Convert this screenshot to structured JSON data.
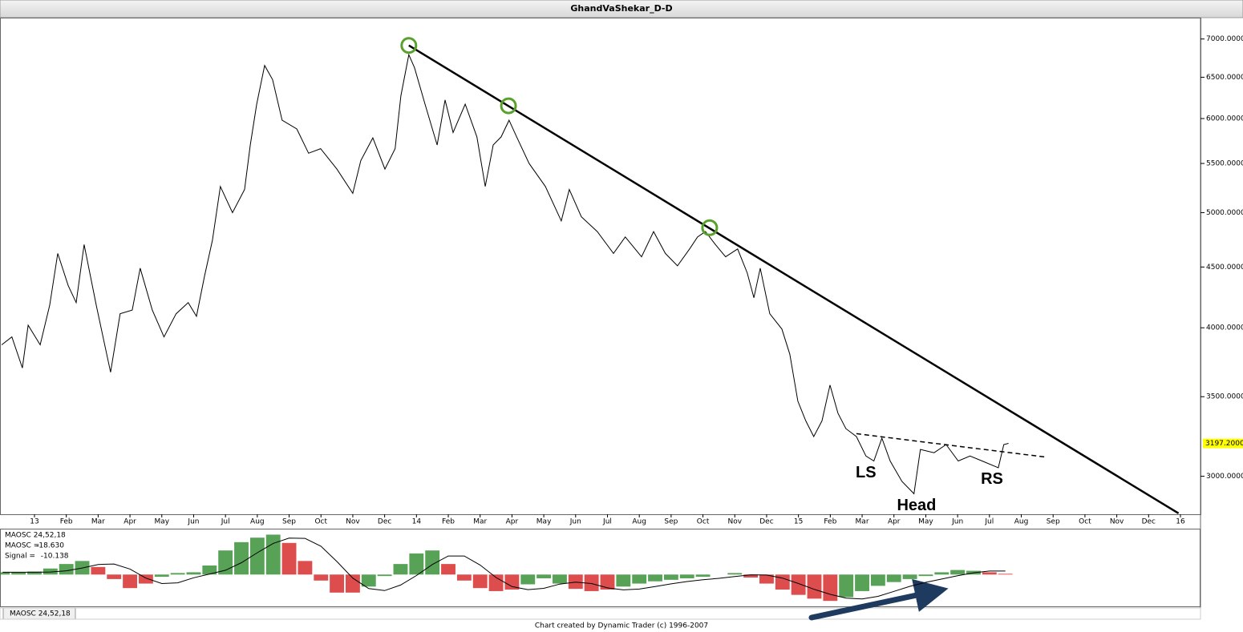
{
  "chart_data": {
    "type": "line",
    "title": "GhandVaShekar_D-D",
    "footer": "Chart created by Dynamic Trader  (c) 1996-2007",
    "log_scale": true,
    "color": "#000000",
    "xlim": [
      -1.083,
      36.63
    ],
    "xticks": [
      {
        "value": 0,
        "label": "13"
      },
      {
        "value": 1,
        "label": "Feb"
      },
      {
        "value": 2,
        "label": "Mar"
      },
      {
        "value": 3,
        "label": "Apr"
      },
      {
        "value": 4,
        "label": "May"
      },
      {
        "value": 5,
        "label": "Jun"
      },
      {
        "value": 6,
        "label": "Jul"
      },
      {
        "value": 7,
        "label": "Aug"
      },
      {
        "value": 8,
        "label": "Sep"
      },
      {
        "value": 9,
        "label": "Oct"
      },
      {
        "value": 10,
        "label": "Nov"
      },
      {
        "value": 11,
        "label": "Dec"
      },
      {
        "value": 12,
        "label": "14"
      },
      {
        "value": 13,
        "label": "Feb"
      },
      {
        "value": 14,
        "label": "Mar"
      },
      {
        "value": 15,
        "label": "Apr"
      },
      {
        "value": 16,
        "label": "May"
      },
      {
        "value": 17,
        "label": "Jun"
      },
      {
        "value": 18,
        "label": "Jul"
      },
      {
        "value": 19,
        "label": "Aug"
      },
      {
        "value": 20,
        "label": "Sep"
      },
      {
        "value": 21,
        "label": "Oct"
      },
      {
        "value": 22,
        "label": "Nov"
      },
      {
        "value": 23,
        "label": "Dec"
      },
      {
        "value": 24,
        "label": "15"
      },
      {
        "value": 25,
        "label": "Feb"
      },
      {
        "value": 26,
        "label": "Mar"
      },
      {
        "value": 27,
        "label": "Apr"
      },
      {
        "value": 28,
        "label": "May"
      },
      {
        "value": 29,
        "label": "Jun"
      },
      {
        "value": 30,
        "label": "Jul"
      },
      {
        "value": 31,
        "label": "Aug"
      },
      {
        "value": 32,
        "label": "Sep"
      },
      {
        "value": 33,
        "label": "Oct"
      },
      {
        "value": 34,
        "label": "Nov"
      },
      {
        "value": 35,
        "label": "Dec"
      },
      {
        "value": 36,
        "label": "16"
      }
    ],
    "ylim": [
      2787,
      7296
    ],
    "yticks": [
      {
        "value": 3000,
        "label": "3000.0000"
      },
      {
        "value": 3500,
        "label": "3500.0000"
      },
      {
        "value": 4000,
        "label": "4000.0000"
      },
      {
        "value": 4500,
        "label": "4500.0000"
      },
      {
        "value": 5000,
        "label": "5000.0000"
      },
      {
        "value": 5500,
        "label": "5500.0000"
      },
      {
        "value": 6000,
        "label": "6000.0000"
      },
      {
        "value": 6500,
        "label": "6500.0000"
      },
      {
        "value": 7000,
        "label": "7000.0000"
      }
    ],
    "last_price": {
      "value": 3197.2,
      "label": "3197.2000",
      "color": "#ffff00"
    },
    "x": [
      -1.03,
      -0.71,
      -0.38,
      -0.2,
      0.18,
      0.48,
      0.73,
      1.06,
      1.31,
      1.56,
      1.94,
      2.27,
      2.39,
      2.69,
      3.07,
      3.32,
      3.7,
      4.07,
      4.45,
      4.83,
      5.09,
      5.34,
      5.59,
      5.84,
      6.22,
      6.6,
      6.78,
      6.98,
      7.23,
      7.48,
      7.78,
      8.24,
      8.61,
      8.99,
      9.5,
      10.0,
      10.25,
      10.63,
      11.01,
      11.33,
      11.51,
      11.76,
      11.94,
      12.27,
      12.65,
      12.9,
      13.15,
      13.53,
      13.9,
      14.16,
      14.41,
      14.66,
      14.91,
      15.16,
      15.54,
      16.05,
      16.55,
      16.8,
      17.18,
      17.68,
      18.19,
      18.56,
      19.07,
      19.45,
      19.82,
      20.2,
      20.58,
      20.83,
      21.08,
      21.39,
      21.71,
      22.09,
      22.39,
      22.6,
      22.8,
      23.1,
      23.48,
      23.73,
      23.98,
      24.23,
      24.48,
      24.74,
      24.99,
      25.24,
      25.49,
      25.82,
      26.12,
      26.37,
      26.62,
      26.88,
      27.25,
      27.63,
      27.83,
      28.26,
      28.64,
      29.02,
      29.39,
      29.77,
      30.28,
      30.45,
      30.6
    ],
    "values": [
      3870,
      3930,
      3700,
      4020,
      3870,
      4180,
      4620,
      4340,
      4200,
      4700,
      4180,
      3800,
      3670,
      4110,
      4140,
      4490,
      4140,
      3930,
      4110,
      4200,
      4090,
      4420,
      4740,
      5260,
      5000,
      5230,
      5700,
      6170,
      6650,
      6470,
      5980,
      5880,
      5610,
      5660,
      5440,
      5190,
      5530,
      5780,
      5440,
      5660,
      6270,
      6790,
      6620,
      6170,
      5700,
      6220,
      5840,
      6170,
      5790,
      5260,
      5700,
      5790,
      5980,
      5780,
      5500,
      5260,
      4920,
      5230,
      4960,
      4820,
      4620,
      4770,
      4590,
      4820,
      4620,
      4510,
      4660,
      4770,
      4820,
      4700,
      4590,
      4660,
      4450,
      4240,
      4490,
      4110,
      3990,
      3800,
      3470,
      3340,
      3240,
      3340,
      3580,
      3390,
      3290,
      3240,
      3120,
      3090,
      3230,
      3090,
      2970,
      2900,
      3160,
      3140,
      3190,
      3090,
      3120,
      3090,
      3050,
      3190,
      3197.2
    ],
    "trendlines": [
      {
        "x": [
          11.76,
          35.94
        ],
        "values": [
          6913,
          2792
        ],
        "style": "solid"
      },
      {
        "x": [
          25.82,
          31.79
        ],
        "values": [
          3258,
          3113
        ],
        "style": "dashed"
      }
    ],
    "highlights": {
      "color": "#5aa02c",
      "x": [
        11.76,
        14.89,
        21.21
      ],
      "values": [
        6913,
        6150,
        4856
      ]
    },
    "annotations": [
      {
        "text": "LS",
        "x": 26.12,
        "value": 3019
      },
      {
        "text": "Head",
        "x": 27.71,
        "value": 2831
      },
      {
        "text": "RS",
        "x": 30.08,
        "value": 2981
      }
    ],
    "indicator": {
      "type": "bar",
      "name": "MAOSC 24,52,18",
      "ylim": [
        -130,
        170
      ],
      "up_color": "#2e8b2e",
      "down_color": "#d42020",
      "signal_color": "#000000",
      "readout": [
        {
          "label": "MAOSC =",
          "value": -18.63,
          "text": "-18.630",
          "color": "#008000"
        },
        {
          "label": "Signal =",
          "value": -10.138,
          "text": "-10.138",
          "color": "#c00000"
        }
      ],
      "x": [
        -1,
        -0.5,
        0,
        0.5,
        1,
        1.5,
        2,
        2.5,
        3,
        3.5,
        4,
        4.5,
        5,
        5.5,
        6,
        6.5,
        7,
        7.5,
        8,
        8.5,
        9,
        9.5,
        10,
        10.5,
        11,
        11.5,
        12,
        12.5,
        13,
        13.5,
        14,
        14.5,
        15,
        15.5,
        16,
        16.5,
        17,
        17.5,
        18,
        18.5,
        19,
        19.5,
        20,
        20.5,
        21,
        21.5,
        22,
        22.5,
        23,
        23.5,
        24,
        24.5,
        25,
        25.5,
        26,
        26.5,
        27,
        27.5,
        28,
        28.5,
        29,
        29.5,
        30,
        30.5
      ],
      "values": [
        9,
        9,
        12,
        24,
        42,
        54,
        30,
        -18,
        -54,
        -36,
        -9,
        6,
        9,
        36,
        96,
        129,
        147,
        159,
        126,
        54,
        -24,
        -72,
        -72,
        -48,
        -6,
        42,
        84,
        96,
        42,
        -24,
        -54,
        -66,
        -60,
        -39,
        -15,
        -36,
        -57,
        -66,
        -60,
        -48,
        -36,
        -27,
        -21,
        -15,
        -9,
        0,
        6,
        -12,
        -36,
        -60,
        -81,
        -96,
        -105,
        -90,
        -66,
        -45,
        -30,
        -18,
        -6,
        9,
        18,
        15,
        9,
        3
      ],
      "signal": [
        9,
        9,
        9,
        10,
        15,
        26,
        40,
        42,
        22,
        -14,
        -36,
        -33,
        -13,
        2,
        17,
        47,
        87,
        124,
        145,
        144,
        113,
        52,
        -14,
        -56,
        -64,
        -42,
        -4,
        40,
        74,
        74,
        38,
        -12,
        -48,
        -60,
        -55,
        -38,
        -30,
        -36,
        -53,
        -61,
        -58,
        -48,
        -37,
        -28,
        -21,
        -15,
        -8,
        -1,
        -2,
        -14,
        -36,
        -59,
        -79,
        -94,
        -97,
        -87,
        -67,
        -47,
        -31,
        -18,
        -5,
        7,
        14,
        14
      ]
    }
  }
}
